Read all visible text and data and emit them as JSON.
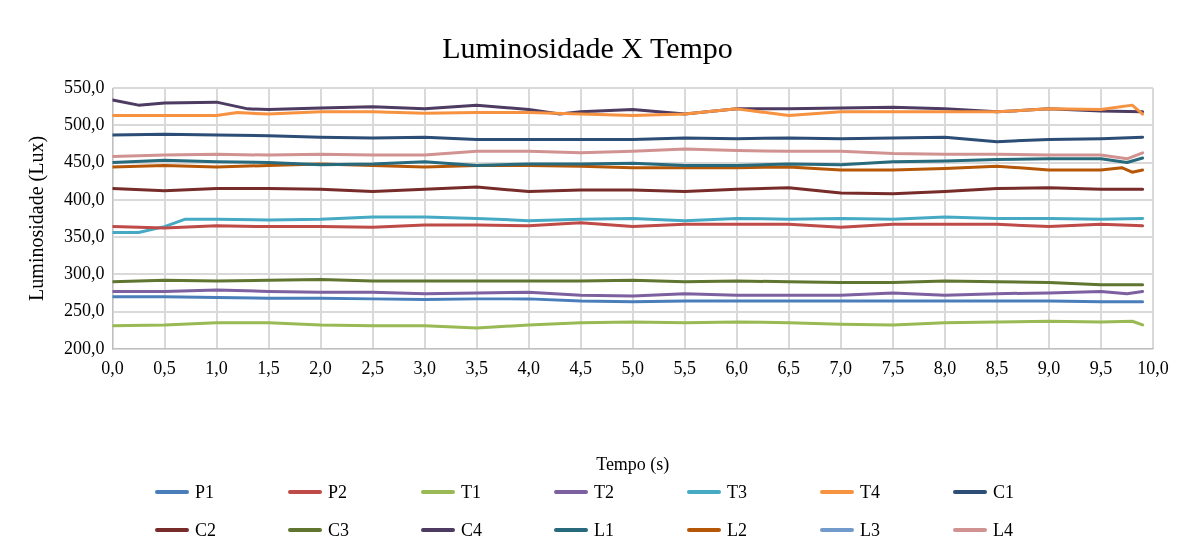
{
  "chart_data": {
    "type": "line",
    "title": "Luminosidade X Tempo",
    "xlabel": "Tempo (s)",
    "ylabel": "Luminosidade (Lux)",
    "xlim": [
      0,
      10
    ],
    "ylim": [
      200,
      550
    ],
    "xticks": [
      {
        "value": 0,
        "label": "0,0"
      },
      {
        "value": 0.5,
        "label": "0,5"
      },
      {
        "value": 1,
        "label": "1,0"
      },
      {
        "value": 1.5,
        "label": "1,5"
      },
      {
        "value": 2,
        "label": "2,0"
      },
      {
        "value": 2.5,
        "label": "2,5"
      },
      {
        "value": 3,
        "label": "3,0"
      },
      {
        "value": 3.5,
        "label": "3,5"
      },
      {
        "value": 4,
        "label": "4,0"
      },
      {
        "value": 4.5,
        "label": "4,5"
      },
      {
        "value": 5,
        "label": "5,0"
      },
      {
        "value": 5.5,
        "label": "5,5"
      },
      {
        "value": 6,
        "label": "6,0"
      },
      {
        "value": 6.5,
        "label": "6,5"
      },
      {
        "value": 7,
        "label": "7,0"
      },
      {
        "value": 7.5,
        "label": "7,5"
      },
      {
        "value": 8,
        "label": "8,0"
      },
      {
        "value": 8.5,
        "label": "8,5"
      },
      {
        "value": 9,
        "label": "9,0"
      },
      {
        "value": 9.5,
        "label": "9,5"
      },
      {
        "value": 10,
        "label": "10,0"
      }
    ],
    "yticks": [
      {
        "value": 200,
        "label": "200,0"
      },
      {
        "value": 250,
        "label": "250,0"
      },
      {
        "value": 300,
        "label": "300,0"
      },
      {
        "value": 350,
        "label": "350,0"
      },
      {
        "value": 400,
        "label": "400,0"
      },
      {
        "value": 450,
        "label": "450,0"
      },
      {
        "value": 500,
        "label": "500,0"
      },
      {
        "value": 550,
        "label": "550,0"
      }
    ],
    "grid": true,
    "legend": "bottom",
    "marker": "none",
    "line_style": "solid",
    "series": [
      {
        "name": "P1",
        "color": "#4a7ebb",
        "x": [
          0,
          0.5,
          1,
          1.5,
          2,
          2.5,
          3,
          3.5,
          4,
          4.5,
          5,
          5.5,
          6,
          6.5,
          7,
          7.5,
          8,
          8.5,
          9,
          9.5,
          9.9
        ],
        "values": [
          270,
          270,
          269,
          268,
          268,
          267,
          266,
          267,
          267,
          264,
          263,
          264,
          264,
          264,
          264,
          264,
          264,
          264,
          264,
          263,
          263
        ]
      },
      {
        "name": "P2",
        "color": "#be4b48",
        "x": [
          0,
          0.5,
          1,
          1.5,
          2,
          2.5,
          3,
          3.5,
          4,
          4.5,
          5,
          5.5,
          6,
          6.5,
          7,
          7.5,
          8,
          8.5,
          9,
          9.5,
          9.9
        ],
        "values": [
          364,
          362,
          365,
          364,
          364,
          363,
          366,
          366,
          365,
          369,
          364,
          367,
          367,
          367,
          363,
          367,
          367,
          367,
          364,
          367,
          365
        ]
      },
      {
        "name": "T1",
        "color": "#98b954",
        "x": [
          0,
          0.5,
          1,
          1.5,
          2,
          2.5,
          3,
          3.5,
          4,
          4.5,
          5,
          5.5,
          6,
          6.5,
          7,
          7.5,
          8,
          8.5,
          9,
          9.5,
          9.8,
          9.9
        ],
        "values": [
          231,
          232,
          235,
          235,
          232,
          231,
          231,
          228,
          232,
          235,
          236,
          235,
          236,
          235,
          233,
          232,
          235,
          236,
          237,
          236,
          237,
          232
        ]
      },
      {
        "name": "T2",
        "color": "#7d60a0",
        "x": [
          0,
          0.5,
          1,
          1.5,
          2,
          2.5,
          3,
          3.5,
          4,
          4.5,
          5,
          5.5,
          6,
          6.5,
          7,
          7.5,
          8,
          8.5,
          9,
          9.5,
          9.75,
          9.9
        ],
        "values": [
          277,
          277,
          279,
          277,
          276,
          276,
          274,
          275,
          276,
          272,
          271,
          274,
          272,
          272,
          272,
          275,
          272,
          274,
          275,
          277,
          274,
          277
        ]
      },
      {
        "name": "T3",
        "color": "#46aac5",
        "x": [
          0,
          0.25,
          0.5,
          0.7,
          1,
          1.5,
          2,
          2.5,
          3,
          3.5,
          4,
          4.5,
          5,
          5.5,
          6,
          6.5,
          7,
          7.5,
          8,
          8.5,
          9,
          9.5,
          9.9
        ],
        "values": [
          356,
          356,
          364,
          374,
          374,
          373,
          374,
          377,
          377,
          375,
          372,
          374,
          375,
          372,
          375,
          374,
          375,
          374,
          377,
          375,
          375,
          374,
          375
        ]
      },
      {
        "name": "T4",
        "color": "#f69240",
        "x": [
          0,
          1,
          1.2,
          1.5,
          2,
          2.5,
          3,
          3.5,
          4,
          4.5,
          5,
          5.5,
          6,
          6.5,
          7,
          7.5,
          8,
          8.5,
          9,
          9.5,
          9.8,
          9.9
        ],
        "values": [
          513,
          513,
          517,
          515,
          518,
          518,
          516,
          517,
          517,
          515,
          513,
          515,
          522,
          513,
          518,
          518,
          518,
          518,
          522,
          521,
          527,
          515
        ]
      },
      {
        "name": "C1",
        "color": "#2c4d75",
        "x": [
          0,
          0.5,
          1,
          1.5,
          2,
          2.5,
          3,
          3.5,
          4,
          4.5,
          5,
          5.5,
          6,
          6.5,
          7,
          7.5,
          8,
          8.5,
          9,
          9.5,
          9.9
        ],
        "values": [
          487,
          488,
          487,
          486,
          484,
          483,
          484,
          481,
          481,
          481,
          481,
          483,
          482,
          483,
          482,
          483,
          484,
          478,
          481,
          482,
          484
        ]
      },
      {
        "name": "C2",
        "color": "#772c2a",
        "x": [
          0,
          0.5,
          1,
          1.5,
          2,
          2.5,
          3,
          3.5,
          4,
          4.5,
          5,
          5.5,
          6,
          6.5,
          7,
          7.5,
          8,
          8.5,
          9,
          9.5,
          9.9
        ],
        "values": [
          415,
          412,
          415,
          415,
          414,
          411,
          414,
          417,
          411,
          413,
          413,
          411,
          414,
          416,
          409,
          408,
          411,
          415,
          416,
          414,
          414
        ]
      },
      {
        "name": "C3",
        "color": "#5f7530",
        "x": [
          0,
          0.5,
          1,
          1.5,
          2,
          2.5,
          3,
          3.5,
          4,
          4.5,
          5,
          5.5,
          6,
          6.5,
          7,
          7.5,
          8,
          8.5,
          9,
          9.5,
          9.9
        ],
        "values": [
          290,
          292,
          291,
          292,
          293,
          291,
          291,
          291,
          291,
          291,
          292,
          290,
          291,
          290,
          289,
          289,
          291,
          290,
          289,
          286,
          286
        ]
      },
      {
        "name": "C4",
        "color": "#4d3b62",
        "x": [
          0,
          0.25,
          0.5,
          1,
          1.3,
          1.5,
          2,
          2.5,
          3,
          3.5,
          4,
          4.3,
          4.5,
          5,
          5.5,
          6,
          6.5,
          7,
          7.5,
          8,
          8.5,
          9,
          9.5,
          9.9
        ],
        "values": [
          534,
          527,
          530,
          531,
          522,
          521,
          523,
          525,
          522,
          527,
          521,
          515,
          518,
          521,
          515,
          522,
          522,
          523,
          524,
          522,
          518,
          522,
          519,
          518
        ]
      },
      {
        "name": "L1",
        "color": "#276a7c",
        "x": [
          0,
          0.5,
          1,
          1.5,
          2,
          2.5,
          3,
          3.5,
          4,
          4.5,
          5,
          5.5,
          6,
          6.5,
          7,
          7.5,
          8,
          8.5,
          9,
          9.5,
          9.75,
          9.9
        ],
        "values": [
          450,
          453,
          451,
          450,
          447,
          448,
          451,
          446,
          448,
          448,
          449,
          446,
          446,
          448,
          447,
          451,
          452,
          454,
          455,
          455,
          450,
          456
        ]
      },
      {
        "name": "L2",
        "color": "#b65708",
        "x": [
          0,
          0.5,
          1,
          1.5,
          2,
          2.5,
          3,
          3.5,
          4,
          4.5,
          5,
          5.5,
          6,
          6.5,
          7,
          7.5,
          8,
          8.5,
          9,
          9.5,
          9.7,
          9.8,
          9.9
        ],
        "values": [
          444,
          446,
          444,
          446,
          448,
          446,
          444,
          446,
          446,
          445,
          443,
          443,
          443,
          444,
          440,
          440,
          442,
          445,
          440,
          440,
          443,
          437,
          440
        ]
      },
      {
        "name": "L3",
        "color": "#729aca"
      },
      {
        "name": "L4",
        "color": "#d19392",
        "x": [
          0,
          0.5,
          1,
          1.5,
          2,
          2.5,
          3,
          3.5,
          4,
          4.5,
          5,
          5.5,
          6,
          6.5,
          7,
          7.5,
          8,
          8.5,
          9,
          9.5,
          9.75,
          9.9
        ],
        "values": [
          458,
          460,
          461,
          460,
          461,
          460,
          460,
          465,
          465,
          463,
          465,
          468,
          466,
          465,
          465,
          462,
          461,
          461,
          460,
          460,
          455,
          463
        ]
      }
    ]
  }
}
